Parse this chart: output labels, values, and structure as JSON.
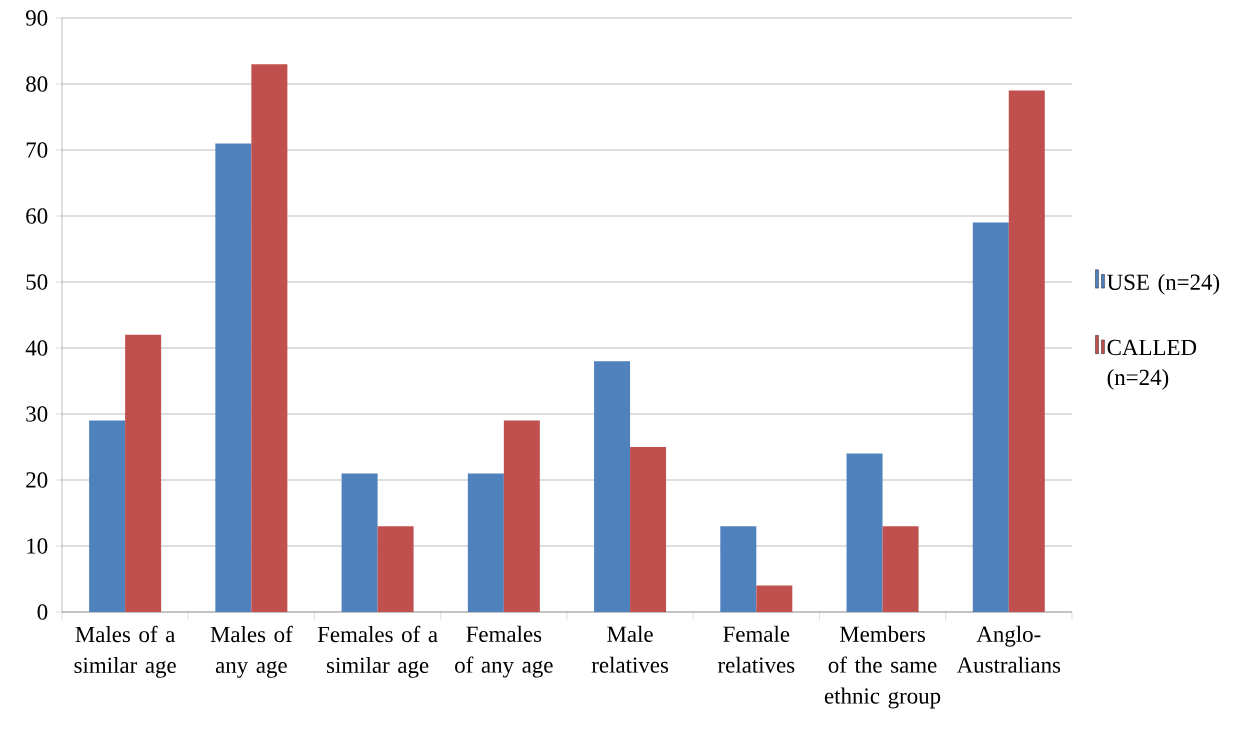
{
  "chart_data": {
    "type": "bar",
    "categories": [
      "Males of a similar age",
      "Males of any age",
      "Females of a similar age",
      "Females of any age",
      "Male relatives",
      "Female relatives",
      "Members of the same ethnic group",
      "Anglo-Australians"
    ],
    "series": [
      {
        "name": "USE (n=24)",
        "color": "#4f81bd",
        "values": [
          29,
          71,
          21,
          21,
          38,
          13,
          24,
          59
        ]
      },
      {
        "name": "CALLED (n=24)",
        "color": "#c0504d",
        "values": [
          42,
          83,
          13,
          29,
          25,
          4,
          13,
          79
        ]
      }
    ],
    "ylim": [
      0,
      90
    ],
    "yticks": [
      0,
      10,
      20,
      30,
      40,
      50,
      60,
      70,
      80,
      90
    ],
    "grid": "y",
    "legend": "right"
  }
}
